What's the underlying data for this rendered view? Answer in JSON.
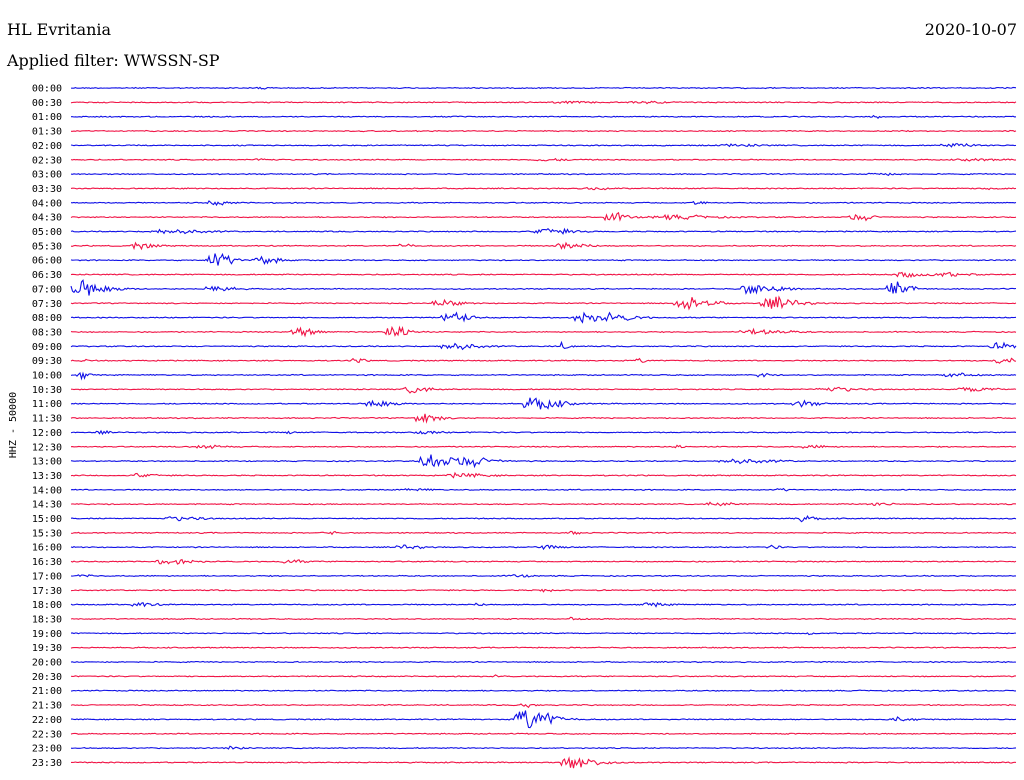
{
  "header": {
    "station": "HL Evritania",
    "date": "2020-10-07",
    "filter": "Applied filter: WWSSN-SP"
  },
  "chart_data": {
    "type": "line",
    "title": "HL Evritania",
    "ylabel": "HHZ - 50000",
    "colors": [
      "#1010e6",
      "#f01446"
    ],
    "rows": [
      {
        "label": "00:00",
        "events": [
          [
            0.2,
            0.6,
            0.01
          ]
        ]
      },
      {
        "label": "00:30",
        "events": [
          [
            0.52,
            0.4,
            0.03
          ],
          [
            0.6,
            0.4,
            0.04
          ]
        ]
      },
      {
        "label": "01:00",
        "events": [
          [
            0.85,
            1.2,
            0.005
          ]
        ]
      },
      {
        "label": "01:30",
        "events": []
      },
      {
        "label": "02:00",
        "events": [
          [
            0.7,
            0.6,
            0.03
          ],
          [
            0.93,
            0.8,
            0.03
          ]
        ]
      },
      {
        "label": "02:30",
        "events": [
          [
            0.2,
            0.6,
            0.015
          ],
          [
            0.5,
            0.5,
            0.03
          ],
          [
            0.95,
            0.5,
            0.03
          ]
        ]
      },
      {
        "label": "03:00",
        "events": [
          [
            0.85,
            0.7,
            0.02
          ]
        ]
      },
      {
        "label": "03:30",
        "events": [
          [
            0.55,
            0.6,
            0.02
          ],
          [
            0.97,
            0.5,
            0.02
          ]
        ]
      },
      {
        "label": "04:00",
        "events": [
          [
            0.15,
            1.0,
            0.02
          ],
          [
            0.66,
            1.2,
            0.01
          ]
        ]
      },
      {
        "label": "04:30",
        "events": [
          [
            0.57,
            2.2,
            0.02
          ],
          [
            0.63,
            1.0,
            0.05
          ],
          [
            0.83,
            1.8,
            0.02
          ]
        ]
      },
      {
        "label": "05:00",
        "events": [
          [
            0.1,
            1.2,
            0.04
          ],
          [
            0.5,
            1.6,
            0.03
          ]
        ]
      },
      {
        "label": "05:30",
        "events": [
          [
            0.07,
            1.4,
            0.02
          ],
          [
            0.35,
            1.2,
            0.01
          ],
          [
            0.52,
            1.4,
            0.03
          ]
        ]
      },
      {
        "label": "06:00",
        "events": [
          [
            0.15,
            4.5,
            0.02
          ],
          [
            0.2,
            2.0,
            0.02
          ]
        ]
      },
      {
        "label": "06:30",
        "events": [
          [
            0.88,
            1.5,
            0.02
          ],
          [
            0.92,
            1.0,
            0.03
          ]
        ]
      },
      {
        "label": "07:00",
        "events": [
          [
            0.01,
            4.0,
            0.03
          ],
          [
            0.15,
            1.8,
            0.02
          ],
          [
            0.72,
            3.0,
            0.03
          ],
          [
            0.87,
            3.5,
            0.02
          ]
        ]
      },
      {
        "label": "07:30",
        "events": [
          [
            0.39,
            1.8,
            0.02
          ],
          [
            0.65,
            3.0,
            0.03
          ],
          [
            0.74,
            3.0,
            0.03
          ]
        ]
      },
      {
        "label": "08:00",
        "events": [
          [
            0.4,
            3.2,
            0.02
          ],
          [
            0.54,
            3.0,
            0.02
          ],
          [
            0.57,
            2.0,
            0.03
          ]
        ]
      },
      {
        "label": "08:30",
        "events": [
          [
            0.24,
            2.5,
            0.02
          ],
          [
            0.34,
            3.6,
            0.02
          ],
          [
            0.72,
            1.2,
            0.04
          ]
        ]
      },
      {
        "label": "09:00",
        "events": [
          [
            0.4,
            2.0,
            0.03
          ],
          [
            0.52,
            1.8,
            0.01
          ],
          [
            0.98,
            1.6,
            0.02
          ]
        ]
      },
      {
        "label": "09:30",
        "events": [
          [
            0.01,
            2.0,
            0.005
          ],
          [
            0.3,
            1.4,
            0.01
          ],
          [
            0.6,
            1.2,
            0.01
          ],
          [
            0.98,
            1.6,
            0.02
          ]
        ]
      },
      {
        "label": "10:00",
        "events": [
          [
            0.01,
            1.8,
            0.01
          ],
          [
            0.73,
            1.2,
            0.01
          ],
          [
            0.93,
            1.4,
            0.02
          ]
        ]
      },
      {
        "label": "10:30",
        "events": [
          [
            0.36,
            1.8,
            0.02
          ],
          [
            0.8,
            1.2,
            0.03
          ],
          [
            0.95,
            1.2,
            0.03
          ]
        ]
      },
      {
        "label": "11:00",
        "events": [
          [
            0.32,
            2.2,
            0.02
          ],
          [
            0.49,
            3.2,
            0.03
          ],
          [
            0.77,
            1.5,
            0.02
          ]
        ]
      },
      {
        "label": "11:30",
        "events": [
          [
            0.37,
            2.6,
            0.02
          ]
        ]
      },
      {
        "label": "12:00",
        "events": [
          [
            0.03,
            0.8,
            0.01
          ],
          [
            0.23,
            0.8,
            0.005
          ],
          [
            0.37,
            0.8,
            0.02
          ]
        ]
      },
      {
        "label": "12:30",
        "events": [
          [
            0.14,
            1.0,
            0.02
          ],
          [
            0.64,
            0.8,
            0.01
          ],
          [
            0.78,
            0.8,
            0.02
          ]
        ]
      },
      {
        "label": "13:00",
        "events": [
          [
            0.38,
            3.8,
            0.03
          ],
          [
            0.42,
            2.2,
            0.03
          ],
          [
            0.7,
            1.2,
            0.04
          ]
        ]
      },
      {
        "label": "13:30",
        "events": [
          [
            0.07,
            1.0,
            0.02
          ],
          [
            0.41,
            1.0,
            0.03
          ]
        ]
      },
      {
        "label": "14:00",
        "events": [
          [
            0.36,
            0.6,
            0.02
          ],
          [
            0.75,
            0.6,
            0.01
          ]
        ]
      },
      {
        "label": "14:30",
        "events": [
          [
            0.68,
            1.0,
            0.02
          ],
          [
            0.85,
            0.8,
            0.02
          ]
        ]
      },
      {
        "label": "15:00",
        "events": [
          [
            0.11,
            1.0,
            0.03
          ],
          [
            0.77,
            1.2,
            0.02
          ]
        ]
      },
      {
        "label": "15:30",
        "events": [
          [
            0.27,
            1.0,
            0.01
          ],
          [
            0.53,
            0.8,
            0.01
          ]
        ]
      },
      {
        "label": "16:00",
        "events": [
          [
            0.35,
            1.0,
            0.02
          ],
          [
            0.5,
            0.8,
            0.02
          ],
          [
            0.74,
            1.0,
            0.01
          ]
        ]
      },
      {
        "label": "16:30",
        "events": [
          [
            0.1,
            1.2,
            0.03
          ],
          [
            0.23,
            0.8,
            0.02
          ]
        ]
      },
      {
        "label": "17:00",
        "events": [
          [
            0.01,
            0.7,
            0.01
          ],
          [
            0.47,
            0.6,
            0.02
          ]
        ]
      },
      {
        "label": "17:30",
        "events": [
          [
            0.5,
            0.8,
            0.01
          ]
        ]
      },
      {
        "label": "18:00",
        "events": [
          [
            0.07,
            1.0,
            0.02
          ],
          [
            0.61,
            1.0,
            0.02
          ],
          [
            0.43,
            0.7,
            0.01
          ]
        ]
      },
      {
        "label": "18:30",
        "events": [
          [
            0.53,
            0.8,
            0.01
          ]
        ]
      },
      {
        "label": "19:00",
        "events": [
          [
            0.78,
            0.6,
            0.005
          ]
        ]
      },
      {
        "label": "19:30",
        "events": []
      },
      {
        "label": "20:00",
        "events": []
      },
      {
        "label": "20:30",
        "events": [
          [
            0.45,
            0.5,
            0.01
          ]
        ]
      },
      {
        "label": "21:00",
        "events": []
      },
      {
        "label": "21:30",
        "events": [
          [
            0.48,
            1.4,
            0.01
          ]
        ]
      },
      {
        "label": "22:00",
        "events": [
          [
            0.48,
            6.0,
            0.03
          ],
          [
            0.87,
            1.0,
            0.02
          ]
        ]
      },
      {
        "label": "22:30",
        "events": []
      },
      {
        "label": "23:00",
        "events": [
          [
            0.17,
            1.0,
            0.01
          ]
        ]
      },
      {
        "label": "23:30",
        "events": [
          [
            0.53,
            3.2,
            0.03
          ]
        ]
      }
    ]
  }
}
